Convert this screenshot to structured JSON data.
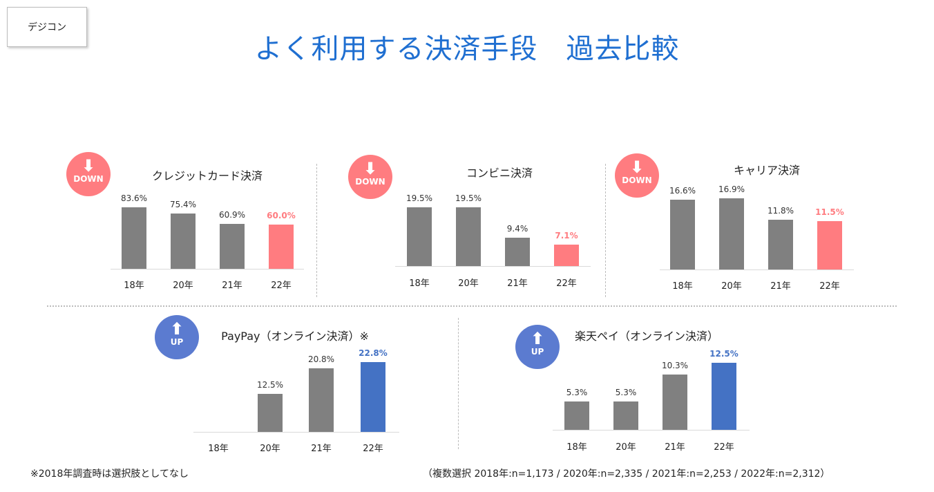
{
  "header": {
    "tag": "デジコン",
    "title": "よく利用する決済手段　過去比較"
  },
  "colors": {
    "gray": "#808080",
    "down": "#ff7c80",
    "up": "#4472c4",
    "up_badge": "#5b7bd0"
  },
  "chart_data": [
    {
      "type": "bar",
      "title": "クレジットカード決済",
      "trend": "DOWN",
      "categories": [
        "18年",
        "20年",
        "21年",
        "22年"
      ],
      "values": [
        83.6,
        75.4,
        60.9,
        60.0
      ],
      "labels": [
        "83.6%",
        "75.4%",
        "60.9%",
        "60.0%"
      ]
    },
    {
      "type": "bar",
      "title": "コンビニ決済",
      "trend": "DOWN",
      "categories": [
        "18年",
        "20年",
        "21年",
        "22年"
      ],
      "values": [
        19.5,
        19.5,
        9.4,
        7.1
      ],
      "labels": [
        "19.5%",
        "19.5%",
        "9.4%",
        "7.1%"
      ]
    },
    {
      "type": "bar",
      "title": "キャリア決済",
      "trend": "DOWN",
      "categories": [
        "18年",
        "20年",
        "21年",
        "22年"
      ],
      "values": [
        16.6,
        16.9,
        11.8,
        11.5
      ],
      "labels": [
        "16.6%",
        "16.9%",
        "11.8%",
        "11.5%"
      ]
    },
    {
      "type": "bar",
      "title": "PayPay（オンライン決済）※",
      "trend": "UP",
      "categories": [
        "18年",
        "20年",
        "21年",
        "22年"
      ],
      "values": [
        null,
        12.5,
        20.8,
        22.8
      ],
      "labels": [
        null,
        "12.5%",
        "20.8%",
        "22.8%"
      ]
    },
    {
      "type": "bar",
      "title": "楽天ペイ（オンライン決済）",
      "trend": "UP",
      "categories": [
        "18年",
        "20年",
        "21年",
        "22年"
      ],
      "values": [
        5.3,
        5.3,
        10.3,
        12.5
      ],
      "labels": [
        "5.3%",
        "5.3%",
        "10.3%",
        "12.5%"
      ]
    }
  ],
  "footer": {
    "left": "※2018年調査時は選択肢としてなし",
    "right": "（複数選択 2018年:n=1,173 / 2020年:n=2,335 / 2021年:n=2,253 / 2022年:n=2,312）"
  }
}
